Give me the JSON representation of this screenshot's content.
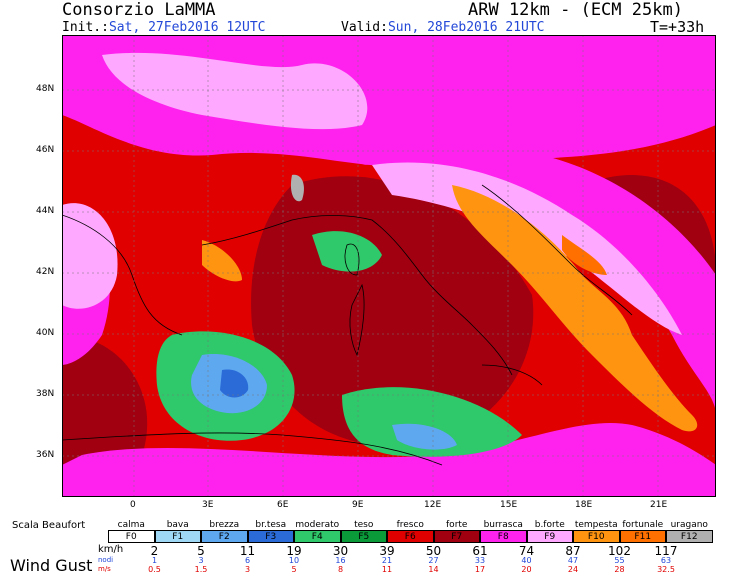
{
  "header": {
    "title_left": "Consorzio LaMMA",
    "title_right": "ARW 12km - (ECM 25km)",
    "init_label": "Init.:",
    "init_value": "Sat, 27Feb2016 12UTC",
    "valid_label": "Valid:",
    "valid_value": "Sun, 28Feb2016 21UTC",
    "time_step": "T=+33h"
  },
  "map": {
    "lat_labels": [
      "48N",
      "46N",
      "44N",
      "42N",
      "40N",
      "38N",
      "36N"
    ],
    "lon_labels": [
      "0",
      "3E",
      "6E",
      "9E",
      "12E",
      "15E",
      "18E",
      "21E"
    ],
    "colors": {
      "F0": "#ffffff",
      "F1": "#9ed8f5",
      "F2": "#5ea8f0",
      "F3": "#2a6bd8",
      "F4": "#2fc86a",
      "F5": "#0a9a3a",
      "F6": "#e00000",
      "F7": "#a00010",
      "F8": "#ff22ee",
      "F9": "#ffa8ff",
      "F10": "#ff9410",
      "F11": "#ff7000",
      "F12": "#b0b0b0"
    }
  },
  "legend": {
    "scale_title": "Scala Beaufort",
    "classes": [
      {
        "code": "F0",
        "name": "calma"
      },
      {
        "code": "F1",
        "name": "bava"
      },
      {
        "code": "F2",
        "name": "brezza"
      },
      {
        "code": "F3",
        "name": "br.tesa"
      },
      {
        "code": "F4",
        "name": "moderato"
      },
      {
        "code": "F5",
        "name": "teso"
      },
      {
        "code": "F6",
        "name": "fresco"
      },
      {
        "code": "F7",
        "name": "forte"
      },
      {
        "code": "F8",
        "name": "burrasca"
      },
      {
        "code": "F9",
        "name": "b.forte"
      },
      {
        "code": "F10",
        "name": "tempesta"
      },
      {
        "code": "F11",
        "name": "fortunale"
      },
      {
        "code": "F12",
        "name": "uragano"
      }
    ],
    "variable_label": "Wind Gust",
    "unit_kmh": "km/h",
    "unit_nodi": "nodi",
    "unit_ms": "m/s",
    "thresholds_kmh": [
      "2",
      "5",
      "11",
      "19",
      "30",
      "39",
      "50",
      "61",
      "74",
      "87",
      "102",
      "117"
    ],
    "thresholds_nodi": [
      "1",
      "3",
      "6",
      "10",
      "16",
      "21",
      "27",
      "33",
      "40",
      "47",
      "55",
      "63"
    ],
    "thresholds_ms": [
      "0.5",
      "1.5",
      "3",
      "5",
      "8",
      "11",
      "14",
      "17",
      "20",
      "24",
      "28",
      "32.5"
    ]
  }
}
